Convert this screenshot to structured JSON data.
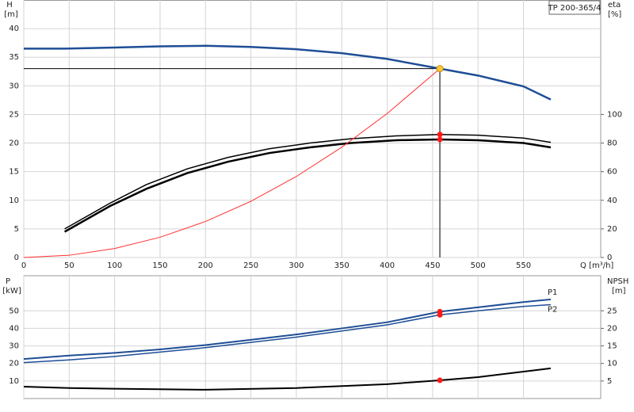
{
  "chart_data": [
    {
      "type": "line",
      "title": "TP 200-365/4",
      "y_label": "H",
      "y_unit": "[m]",
      "y2_label": "eta",
      "y2_unit": "[%]",
      "x_label": "Q [m³/h]",
      "xlim": [
        0,
        635
      ],
      "xticks": [
        0,
        50,
        100,
        150,
        200,
        250,
        300,
        350,
        400,
        450,
        500,
        550
      ],
      "ylim": [
        0,
        45
      ],
      "yticks": [
        0,
        5,
        10,
        15,
        20,
        25,
        30,
        35,
        40
      ],
      "y2lim": [
        0,
        180
      ],
      "y2ticks": [
        0,
        20,
        40,
        60,
        80,
        100
      ],
      "grid": true,
      "duty_q": 458,
      "duty_h": 33,
      "series": [
        {
          "color": "#1f4e96",
          "width": 2.5,
          "x": [
            0,
            45,
            100,
            150,
            200,
            250,
            300,
            350,
            400,
            458,
            500,
            550,
            580
          ],
          "values": [
            36.5,
            36.5,
            36.7,
            36.9,
            37.0,
            36.8,
            36.4,
            35.7,
            34.7,
            33.0,
            31.8,
            29.9,
            27.6
          ]
        },
        {
          "color": "#000000",
          "width": 1.5,
          "axis": "y2",
          "marker": true,
          "x": [
            45,
            95,
            135,
            180,
            225,
            270,
            315,
            360,
            410,
            458,
            500,
            550,
            580
          ],
          "values": [
            20,
            38,
            51,
            62,
            70,
            76,
            80,
            83,
            85,
            86,
            85.5,
            83.5,
            80.5
          ]
        },
        {
          "color": "#000000",
          "width": 2.5,
          "axis": "y2",
          "marker": true,
          "x": [
            45,
            95,
            135,
            180,
            225,
            270,
            315,
            360,
            410,
            458,
            500,
            550,
            580
          ],
          "values": [
            18,
            36,
            48,
            59,
            67,
            73,
            77,
            80,
            82,
            82.5,
            82,
            80,
            77
          ]
        },
        {
          "color": "#ff3030",
          "width": 1,
          "x": [
            0,
            50,
            100,
            150,
            200,
            250,
            300,
            350,
            400,
            458
          ],
          "values": [
            0,
            0.39,
            1.57,
            3.54,
            6.29,
            9.83,
            14.16,
            19.27,
            25.17,
            33.0
          ]
        }
      ]
    },
    {
      "type": "line",
      "y_label": "P",
      "y_unit": "[kW]",
      "y2_label": "NPSH",
      "y2_unit": "[m]",
      "xlim": [
        0,
        635
      ],
      "ylim": [
        0,
        70
      ],
      "yticks": [
        10,
        20,
        30,
        40,
        50
      ],
      "y2lim": [
        0,
        35
      ],
      "y2ticks": [
        5,
        10,
        15,
        20,
        25
      ],
      "grid": true,
      "duty_q": 458,
      "series": [
        {
          "name": "P1",
          "color": "#1f4e96",
          "width": 2,
          "marker": true,
          "x": [
            0,
            50,
            100,
            150,
            200,
            250,
            300,
            350,
            400,
            458,
            500,
            550,
            580
          ],
          "values": [
            22.5,
            24.5,
            26,
            28,
            30.5,
            33.5,
            36.5,
            40,
            43.5,
            49.5,
            52,
            55,
            56.5
          ]
        },
        {
          "name": "P2",
          "color": "#1f4e96",
          "width": 1.5,
          "marker": true,
          "x": [
            0,
            50,
            100,
            150,
            200,
            250,
            300,
            350,
            400,
            458,
            500,
            550,
            580
          ],
          "values": [
            20.5,
            22,
            24,
            26.5,
            29,
            32,
            35,
            38.5,
            42,
            47.7,
            50,
            52.5,
            53.5
          ]
        },
        {
          "color": "#000000",
          "width": 2,
          "axis": "y2",
          "marker": true,
          "x": [
            0,
            50,
            100,
            200,
            300,
            400,
            458,
            500,
            580
          ],
          "values": [
            3.4,
            3.0,
            2.8,
            2.5,
            3.0,
            4.1,
            5.2,
            6.1,
            8.6
          ]
        }
      ]
    }
  ]
}
